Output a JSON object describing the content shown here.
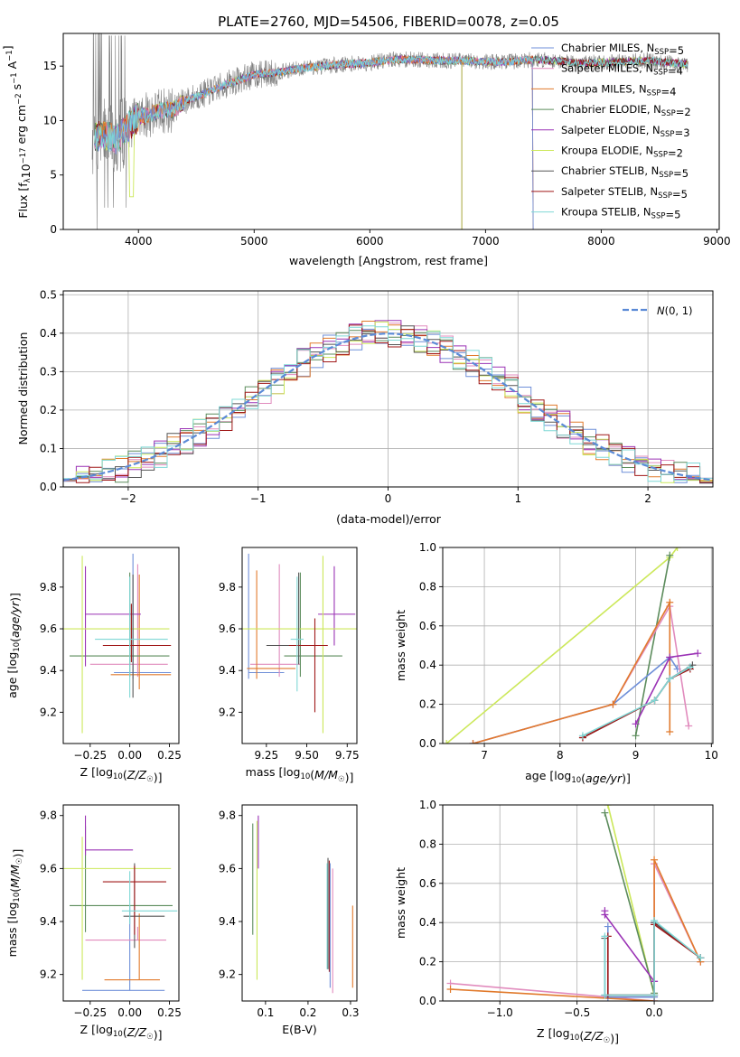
{
  "title": "PLATE=2760, MJD=54506, FIBERID=0078, z=0.05",
  "colors": {
    "Chabrier MILES": "#6f8fd8",
    "Salpeter MILES": "#e18bbd",
    "Kroupa MILES": "#e17a2c",
    "Chabrier ELODIE": "#5c8c5c",
    "Salpeter ELODIE": "#9a32b5",
    "Kroupa ELODIE": "#cce85a",
    "Chabrier STELIB": "#555555",
    "Salpeter STELIB": "#a01818",
    "Kroupa STELIB": "#7fd8d6",
    "observed": "#808080",
    "normal": "#5b8ad6"
  },
  "chart_data": [
    {
      "id": "spectrum",
      "type": "line",
      "xlabel": "wavelength [Angstrom, rest frame]",
      "ylabel": "Flux [f_λ10^-17 erg cm^-2 s^-1 A^-1]",
      "xlim": [
        3350,
        9020
      ],
      "ylim": [
        0,
        18
      ],
      "xticks": [
        4000,
        5000,
        6000,
        7000,
        8000,
        9000
      ],
      "yticks": [
        0,
        5,
        10,
        15
      ],
      "legend": "upper right",
      "legend_entries": [
        {
          "name": "Chabrier MILES",
          "sub": "SSP",
          "n": 5
        },
        {
          "name": "Salpeter MILES",
          "sub": "SSP",
          "n": 4
        },
        {
          "name": "Kroupa MILES",
          "sub": "SSP",
          "n": 4
        },
        {
          "name": "Chabrier ELODIE",
          "sub": "SSP",
          "n": 2
        },
        {
          "name": "Salpeter ELODIE",
          "sub": "SSP",
          "n": 3
        },
        {
          "name": "Kroupa ELODIE",
          "sub": "SSP",
          "n": 2
        },
        {
          "name": "Chabrier STELIB",
          "sub": "SSP",
          "n": 5
        },
        {
          "name": "Salpeter STELIB",
          "sub": "SSP",
          "n": 5
        },
        {
          "name": "Kroupa STELIB",
          "sub": "SSP",
          "n": 5
        }
      ],
      "continuum": {
        "x": [
          3600,
          3700,
          3800,
          3900,
          4000,
          4100,
          4200,
          4300,
          4400,
          4600,
          4800,
          5000,
          5200,
          5400,
          5600,
          5800,
          6000,
          6200,
          6400,
          6600,
          6800,
          7000,
          7200,
          7400,
          7600,
          7800,
          8000,
          8200,
          8400,
          8600,
          8800
        ],
        "y": [
          8.3,
          8.8,
          8.2,
          9.3,
          10.3,
          10.6,
          10.9,
          11.0,
          11.8,
          12.6,
          13.5,
          14.2,
          14.4,
          14.8,
          15.0,
          15.2,
          15.3,
          15.6,
          15.6,
          15.5,
          15.5,
          15.4,
          15.4,
          15.6,
          15.5,
          15.3,
          15.3,
          15.4,
          15.5,
          15.3,
          15.1
        ]
      }
    },
    {
      "id": "residuals",
      "type": "line",
      "xlabel": "(data-model)/error",
      "ylabel": "Normed distribution",
      "xlim": [
        -2.5,
        2.5
      ],
      "ylim": [
        0,
        0.51
      ],
      "xticks": [
        -2,
        -1,
        0,
        1,
        2
      ],
      "yticks": [
        0.0,
        0.1,
        0.2,
        0.3,
        0.4,
        0.5
      ],
      "legend_entry": "N(0,1)",
      "bin_width": 0.1
    },
    {
      "id": "age_vs_Z",
      "type": "scatter",
      "xlabel": "Z [log10(Z/Z☉)]",
      "ylabel": "age  [log10(age/yr)]",
      "xlim": [
        -0.42,
        0.31
      ],
      "ylim": [
        9.05,
        9.99
      ],
      "xticks": [
        -0.25,
        0.0,
        0.25
      ],
      "yticks": [
        9.2,
        9.4,
        9.6,
        9.8
      ],
      "points": [
        {
          "model": "Chabrier MILES",
          "x": 0.02,
          "xe": [
            0.12,
            0.24
          ],
          "y": 9.39,
          "ye": [
            0.03,
            0.57
          ]
        },
        {
          "model": "Salpeter MILES",
          "x": 0.05,
          "xe": [
            0.3,
            0.19
          ],
          "y": 9.43,
          "ye": [
            0.06,
            0.48
          ]
        },
        {
          "model": "Kroupa MILES",
          "x": 0.06,
          "xe": [
            0.18,
            0.2
          ],
          "y": 9.38,
          "ye": [
            0.07,
            0.48
          ]
        },
        {
          "model": "Chabrier ELODIE",
          "x": 0.0,
          "xe": [
            0.38,
            0.25
          ],
          "y": 9.47,
          "ye": [
            0.1,
            0.4
          ]
        },
        {
          "model": "Salpeter ELODIE",
          "x": -0.28,
          "xe": [
            0.0,
            0.35
          ],
          "y": 9.67,
          "ye": [
            0.25,
            0.23
          ]
        },
        {
          "model": "Kroupa ELODIE",
          "x": -0.3,
          "xe": [
            0.12,
            0.55
          ],
          "y": 9.6,
          "ye": [
            0.5,
            0.35
          ]
        },
        {
          "model": "Chabrier STELIB",
          "x": 0.02,
          "xe": [
            0.1,
            0.23
          ],
          "y": 9.52,
          "ye": [
            0.25,
            0.34
          ]
        },
        {
          "model": "Salpeter STELIB",
          "x": 0.01,
          "xe": [
            0.18,
            0.25
          ],
          "y": 9.52,
          "ye": [
            0.08,
            0.2
          ]
        },
        {
          "model": "Kroupa STELIB",
          "x": 0.0,
          "xe": [
            0.22,
            0.24
          ],
          "y": 9.55,
          "ye": [
            0.28,
            0.3
          ]
        }
      ]
    },
    {
      "id": "age_vs_mass",
      "type": "scatter",
      "xlabel": "mass [log10(M/M☉)]",
      "ylabel": "",
      "xlim": [
        9.1,
        9.81
      ],
      "ylim": [
        9.05,
        9.99
      ],
      "xticks": [
        9.25,
        9.5,
        9.75
      ],
      "yticks": [
        9.2,
        9.4,
        9.6,
        9.8
      ],
      "points": [
        {
          "model": "Chabrier MILES",
          "x": 9.14,
          "xe": [
            0.0,
            0.22
          ],
          "y": 9.39,
          "ye": [
            0.03,
            0.57
          ]
        },
        {
          "model": "Salpeter MILES",
          "x": 9.33,
          "xe": [
            0.18,
            0.13
          ],
          "y": 9.43,
          "ye": [
            0.06,
            0.48
          ]
        },
        {
          "model": "Kroupa MILES",
          "x": 9.19,
          "xe": [
            0.06,
            0.24
          ],
          "y": 9.41,
          "ye": [
            0.05,
            0.47
          ]
        },
        {
          "model": "Chabrier ELODIE",
          "x": 9.46,
          "xe": [
            0.1,
            0.26
          ],
          "y": 9.47,
          "ye": [
            0.1,
            0.4
          ]
        },
        {
          "model": "Salpeter ELODIE",
          "x": 9.67,
          "xe": [
            0.1,
            0.13
          ],
          "y": 9.67,
          "ye": [
            0.15,
            0.23
          ]
        },
        {
          "model": "Kroupa ELODIE",
          "x": 9.6,
          "xe": [
            0.5,
            0.5
          ],
          "y": 9.6,
          "ye": [
            0.5,
            0.35
          ]
        },
        {
          "model": "Chabrier STELIB",
          "x": 9.45,
          "xe": [
            0.2,
            0.14
          ],
          "y": 9.52,
          "ye": [
            0.09,
            0.35
          ]
        },
        {
          "model": "Salpeter STELIB",
          "x": 9.55,
          "xe": [
            0.16,
            0.08
          ],
          "y": 9.52,
          "ye": [
            0.32,
            0.13
          ]
        },
        {
          "model": "Kroupa STELIB",
          "x": 9.44,
          "xe": [
            0.04,
            0.04
          ],
          "y": 9.55,
          "ye": [
            0.25,
            0.3
          ]
        }
      ]
    },
    {
      "id": "massweight_vs_age",
      "type": "line",
      "xlabel": "age  [log10(age/yr)]",
      "ylabel": "mass weight",
      "xlim": [
        6.45,
        10.02
      ],
      "ylim": [
        0,
        1
      ],
      "xticks": [
        7,
        8,
        9,
        10
      ],
      "yticks": [
        0.0,
        0.2,
        0.4,
        0.6,
        0.8,
        1.0
      ],
      "series": [
        {
          "model": "Kroupa ELODIE",
          "x": [
            6.5,
            9.45,
            9.55
          ],
          "y": [
            0.0,
            0.95,
            1.0
          ]
        },
        {
          "model": "Chabrier ELODIE",
          "x": [
            9.0,
            9.45
          ],
          "y": [
            0.04,
            0.96
          ]
        },
        {
          "model": "Chabrier MILES",
          "x": [
            6.85,
            8.7,
            9.45,
            9.55
          ],
          "y": [
            0.0,
            0.2,
            0.44,
            0.38
          ]
        },
        {
          "model": "Salpeter MILES",
          "x": [
            6.85,
            8.7,
            9.45,
            9.7
          ],
          "y": [
            0.0,
            0.2,
            0.7,
            0.09
          ]
        },
        {
          "model": "Kroupa MILES",
          "x": [
            6.85,
            8.7,
            9.45,
            9.45
          ],
          "y": [
            0.0,
            0.2,
            0.72,
            0.06
          ]
        },
        {
          "model": "Salpeter ELODIE",
          "x": [
            9.0,
            9.45,
            9.82
          ],
          "y": [
            0.1,
            0.44,
            0.46
          ]
        },
        {
          "model": "Chabrier STELIB",
          "x": [
            8.3,
            9.25,
            9.45,
            9.75
          ],
          "y": [
            0.03,
            0.22,
            0.33,
            0.4
          ]
        },
        {
          "model": "Salpeter STELIB",
          "x": [
            8.3,
            9.25,
            9.45,
            9.72
          ],
          "y": [
            0.03,
            0.22,
            0.33,
            0.38
          ]
        },
        {
          "model": "Kroupa STELIB",
          "x": [
            8.3,
            9.25,
            9.45,
            9.72
          ],
          "y": [
            0.04,
            0.22,
            0.33,
            0.39
          ]
        }
      ]
    },
    {
      "id": "mass_vs_Z",
      "type": "scatter",
      "xlabel": "Z [log10(Z/Z☉)]",
      "ylabel": "mass [log10(M/M☉)]",
      "xlim": [
        -0.42,
        0.31
      ],
      "ylim": [
        9.1,
        9.84
      ],
      "xticks": [
        -0.25,
        0.0,
        0.25
      ],
      "yticks": [
        9.2,
        9.4,
        9.6,
        9.8
      ],
      "points": [
        {
          "model": "Chabrier MILES",
          "x": 0.0,
          "xe": [
            0.3,
            0.22
          ],
          "y": 9.14,
          "ye": [
            0.0,
            0.32
          ]
        },
        {
          "model": "Salpeter MILES",
          "x": 0.05,
          "xe": [
            0.33,
            0.18
          ],
          "y": 9.33,
          "ye": [
            0.0,
            0.05
          ]
        },
        {
          "model": "Kroupa MILES",
          "x": 0.06,
          "xe": [
            0.22,
            0.13
          ],
          "y": 9.18,
          "ye": [
            0.0,
            0.25
          ]
        },
        {
          "model": "Chabrier ELODIE",
          "x": -0.28,
          "xe": [
            0.1,
            0.55
          ],
          "y": 9.46,
          "ye": [
            0.1,
            0.3
          ]
        },
        {
          "model": "Salpeter ELODIE",
          "x": -0.28,
          "xe": [
            0.0,
            0.3
          ],
          "y": 9.67,
          "ye": [
            0.02,
            0.13
          ]
        },
        {
          "model": "Kroupa ELODIE",
          "x": -0.3,
          "xe": [
            0.13,
            0.56
          ],
          "y": 9.6,
          "ye": [
            0.42,
            0.12
          ]
        },
        {
          "model": "Chabrier STELIB",
          "x": 0.03,
          "xe": [
            0.07,
            0.19
          ],
          "y": 9.42,
          "ye": [
            0.12,
            0.2
          ]
        },
        {
          "model": "Salpeter STELIB",
          "x": 0.03,
          "xe": [
            0.2,
            0.2
          ],
          "y": 9.55,
          "ye": [
            0.2,
            0.06
          ]
        },
        {
          "model": "Kroupa STELIB",
          "x": 0.0,
          "xe": [
            0.05,
            0.3
          ],
          "y": 9.44,
          "ye": [
            0.05,
            0.15
          ]
        }
      ]
    },
    {
      "id": "mass_vs_EBV",
      "type": "scatter",
      "xlabel": "E(B-V)",
      "ylabel": "",
      "xlim": [
        0.045,
        0.315
      ],
      "ylim": [
        9.1,
        9.84
      ],
      "xticks": [
        0.1,
        0.2,
        0.3
      ],
      "yticks": [
        9.2,
        9.4,
        9.6,
        9.8
      ],
      "points": [
        {
          "model": "Kroupa ELODIE",
          "x": 0.08,
          "y": 9.5,
          "ye": [
            0.32,
            0.28
          ]
        },
        {
          "model": "Chabrier ELODIE",
          "x": 0.07,
          "y": 9.57,
          "ye": [
            0.22,
            0.2
          ]
        },
        {
          "model": "Salpeter ELODIE",
          "x": 0.083,
          "y": 9.74,
          "ye": [
            0.14,
            0.06
          ]
        },
        {
          "model": "Chabrier STELIB",
          "x": 0.247,
          "y": 9.42,
          "ye": [
            0.2,
            0.22
          ]
        },
        {
          "model": "Salpeter STELIB",
          "x": 0.25,
          "y": 9.43,
          "ye": [
            0.22,
            0.2
          ]
        },
        {
          "model": "Kroupa STELIB",
          "x": 0.245,
          "y": 9.42,
          "ye": [
            0.2,
            0.2
          ]
        },
        {
          "model": "Salpeter MILES",
          "x": 0.258,
          "y": 9.38,
          "ye": [
            0.25,
            0.22
          ]
        },
        {
          "model": "Chabrier MILES",
          "x": 0.252,
          "y": 9.4,
          "ye": [
            0.25,
            0.22
          ]
        },
        {
          "model": "Kroupa MILES",
          "x": 0.305,
          "y": 9.3,
          "ye": [
            0.15,
            0.16
          ]
        }
      ]
    },
    {
      "id": "massweight_vs_Z",
      "type": "line",
      "xlabel": "Z [log10(Z/Z☉)]",
      "ylabel": "mass weight",
      "xlim": [
        -1.37,
        0.38
      ],
      "ylim": [
        0,
        1
      ],
      "xticks": [
        -1.0,
        -0.5,
        0.0
      ],
      "yticks": [
        0.0,
        0.2,
        0.4,
        0.6,
        0.8,
        1.0
      ],
      "series": [
        {
          "model": "Kroupa ELODIE",
          "x": [
            -0.3,
            0.0
          ],
          "y": [
            1.0,
            0.03
          ]
        },
        {
          "model": "Chabrier ELODIE",
          "x": [
            -0.32,
            0.0
          ],
          "y": [
            0.96,
            0.04
          ]
        },
        {
          "model": "Salpeter MILES",
          "x": [
            -1.32,
            0.0,
            0.0,
            0.3
          ],
          "y": [
            0.09,
            0.0,
            0.7,
            0.2
          ]
        },
        {
          "model": "Kroupa MILES",
          "x": [
            -1.32,
            0.0,
            0.0,
            0.3
          ],
          "y": [
            0.06,
            0.0,
            0.72,
            0.2
          ]
        },
        {
          "model": "Salpeter ELODIE",
          "x": [
            -0.32,
            -0.32,
            0.0,
            0.0
          ],
          "y": [
            0.46,
            0.44,
            0.1,
            0.1
          ]
        },
        {
          "model": "Chabrier MILES",
          "x": [
            -0.3,
            -0.3,
            0.0,
            0.0,
            0.3
          ],
          "y": [
            0.38,
            0.02,
            0.02,
            0.4,
            0.22
          ]
        },
        {
          "model": "Chabrier STELIB",
          "x": [
            -0.32,
            -0.32,
            0.0,
            0.0,
            0.3
          ],
          "y": [
            0.32,
            0.03,
            0.03,
            0.4,
            0.22
          ]
        },
        {
          "model": "Salpeter STELIB",
          "x": [
            -0.3,
            -0.3,
            0.0,
            0.0,
            0.3
          ],
          "y": [
            0.33,
            0.03,
            0.03,
            0.39,
            0.22
          ]
        },
        {
          "model": "Kroupa STELIB",
          "x": [
            -0.32,
            -0.32,
            0.0,
            0.0,
            0.3
          ],
          "y": [
            0.33,
            0.03,
            0.03,
            0.41,
            0.22
          ]
        }
      ]
    }
  ]
}
